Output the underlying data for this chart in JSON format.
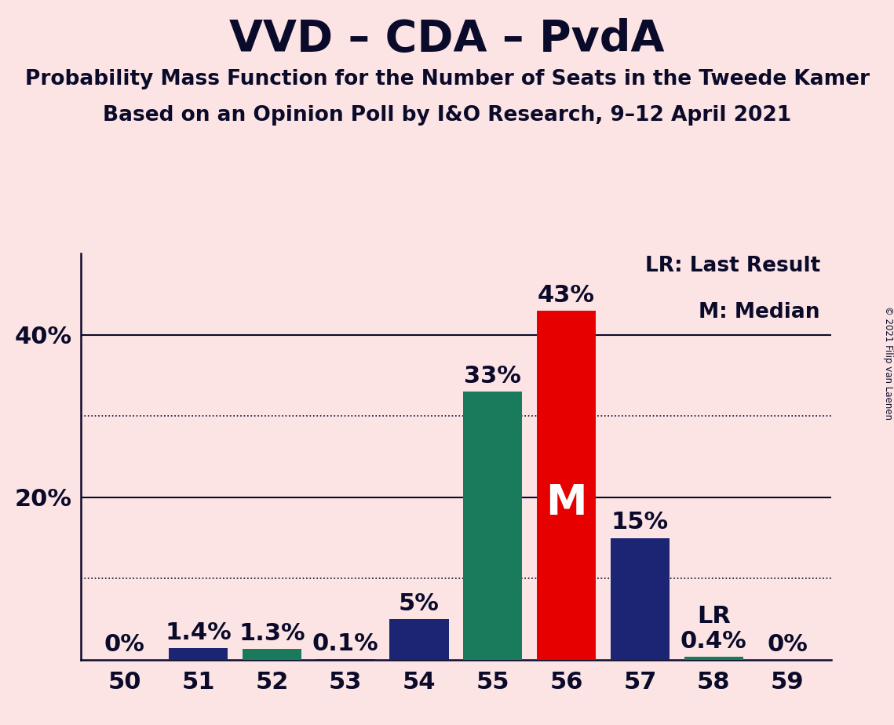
{
  "title": "VVD – CDA – PvdA",
  "subtitle1": "Probability Mass Function for the Number of Seats in the Tweede Kamer",
  "subtitle2": "Based on an Opinion Poll by I&O Research, 9–12 April 2021",
  "copyright": "© 2021 Filip van Laenen",
  "categories": [
    50,
    51,
    52,
    53,
    54,
    55,
    56,
    57,
    58,
    59
  ],
  "values": [
    0.0,
    1.4,
    1.3,
    0.1,
    5.0,
    33.0,
    43.0,
    15.0,
    0.4,
    0.0
  ],
  "labels": [
    "0%",
    "1.4%",
    "1.3%",
    "0.1%",
    "5%",
    "33%",
    "43%",
    "15%",
    "0.4%",
    "0%"
  ],
  "bar_colors": [
    "#1c2574",
    "#1c2574",
    "#1a7a5c",
    "#1c2574",
    "#1c2574",
    "#1a7a5c",
    "#e60000",
    "#1c2574",
    "#1a7a5c",
    "#1c2574"
  ],
  "median_bar_idx": 6,
  "lr_bar_idx": 8,
  "background_color": "#fce4e4",
  "ylim": [
    0,
    50
  ],
  "solid_hlines": [
    20,
    40
  ],
  "dotted_hlines": [
    10,
    30
  ],
  "legend_text1": "LR: Last Result",
  "legend_text2": "M: Median",
  "median_label": "M",
  "lr_label": "LR",
  "title_fontsize": 40,
  "subtitle_fontsize": 19,
  "label_fontsize": 22,
  "tick_fontsize": 22,
  "legend_fontsize": 19,
  "median_fontsize": 38
}
